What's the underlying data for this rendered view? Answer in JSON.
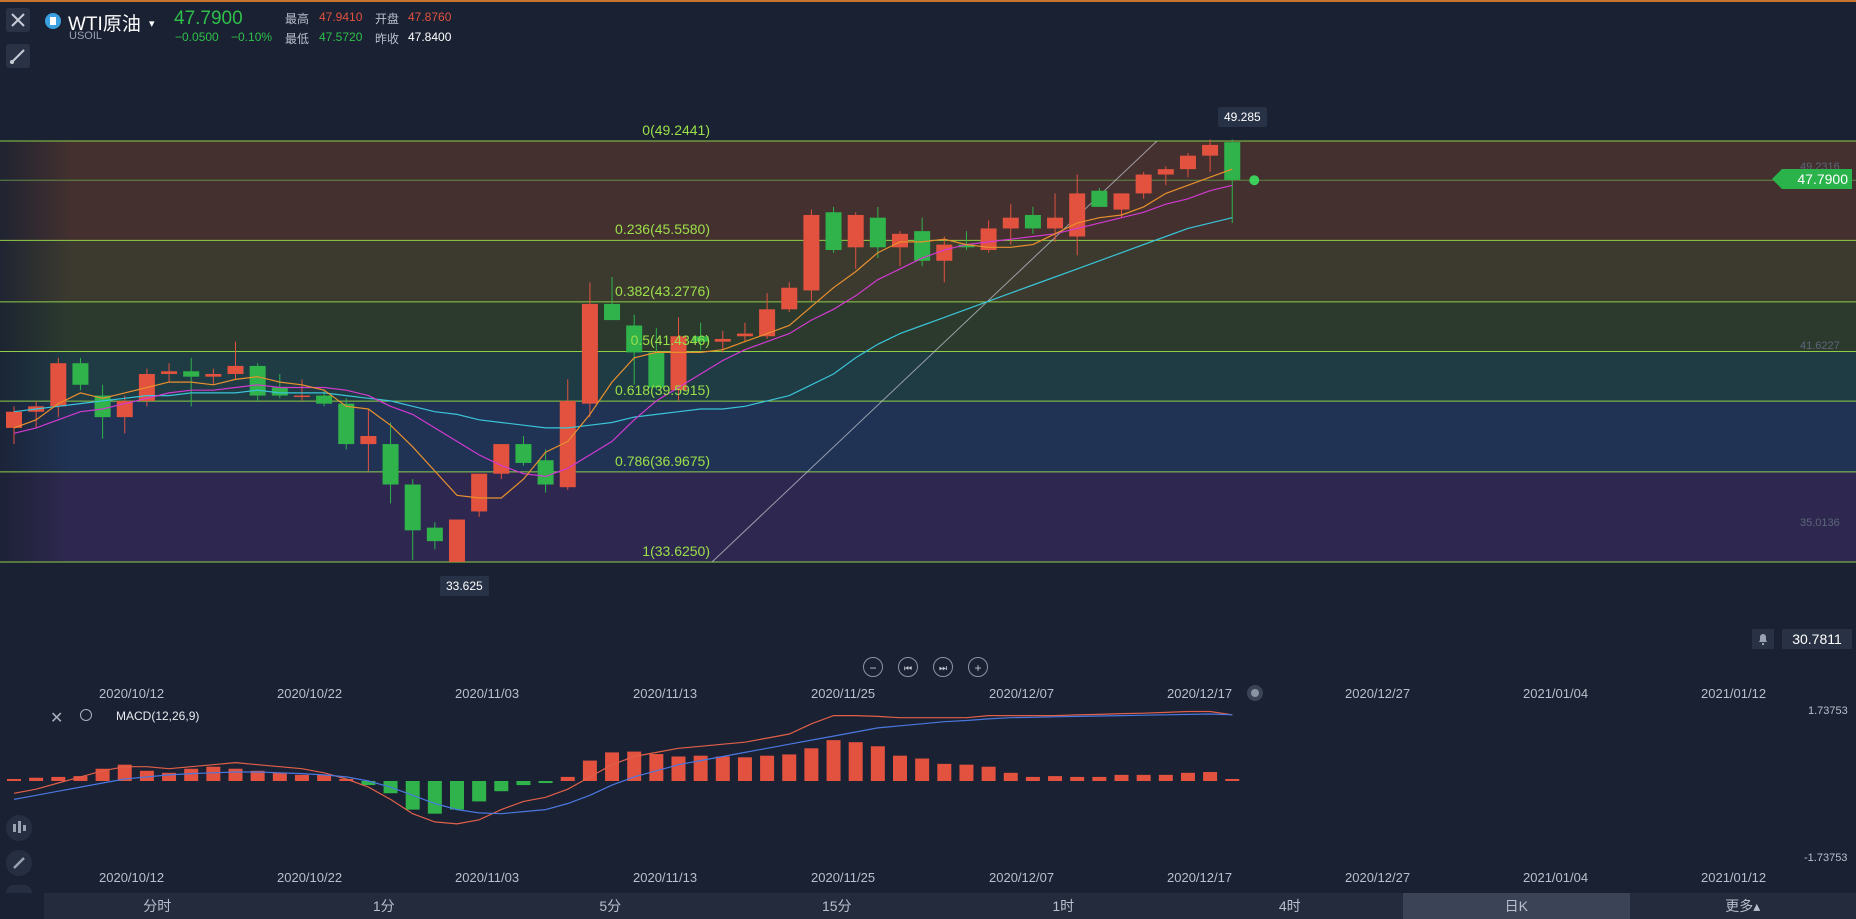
{
  "header": {
    "symbol_name": "WTI原油",
    "symbol_code": "USOIL",
    "caret": "▾",
    "last_price": "47.7900",
    "change": "−0.0500",
    "change_pct": "−0.10%",
    "stats": {
      "high_label": "最高",
      "high_value": "47.9410",
      "open_label": "开盘",
      "open_value": "47.8760",
      "low_label": "最低",
      "low_value": "47.5720",
      "prev_close_label": "昨收",
      "prev_close_value": "47.8400"
    },
    "close_icon": "close-icon",
    "draw_tool_icon": "pencil-line-icon"
  },
  "colors": {
    "up": "#e2523f",
    "down": "#2fb34a",
    "ma5": "#e8902e",
    "ma10": "#d23ad0",
    "ma20": "#3ac4d8",
    "fib_line": "#9be04a",
    "macd_dif": "#e0604a",
    "macd_dea": "#4a78e0"
  },
  "price_panel": {
    "current_price_tag": "47.7900",
    "high_callout": "49.285",
    "low_callout": "33.625",
    "right_axis_labels": [
      "49.2316",
      "41.6227",
      "35.0136"
    ],
    "indicator_value": "30.7811",
    "bell_icon": "bell-icon"
  },
  "fibonacci": {
    "levels": [
      {
        "label": "0(49.2441)",
        "price": 49.2441
      },
      {
        "label": "0.236(45.5580)",
        "price": 45.558
      },
      {
        "label": "0.382(43.2776)",
        "price": 43.2776
      },
      {
        "label": "0.5(41.4346)",
        "price": 41.4346
      },
      {
        "label": "0.618(39.5915)",
        "price": 39.5915
      },
      {
        "label": "0.786(36.9675)",
        "price": 36.9675
      },
      {
        "label": "1(33.6250)",
        "price": 33.625
      }
    ]
  },
  "navigation": {
    "zoom_out": "−",
    "prev": "⏮",
    "next": "⏭",
    "zoom_in": "+"
  },
  "date_axis": [
    "2020/10/12",
    "2020/10/22",
    "2020/11/03",
    "2020/11/13",
    "2020/11/25",
    "2020/12/07",
    "2020/12/17",
    "2020/12/27",
    "2021/01/04",
    "2021/01/12"
  ],
  "macd_panel": {
    "name": "MACD(12,26,9)",
    "top_label": "1.73753",
    "bottom_label": "-1.73753"
  },
  "timeframes": [
    "分时",
    "1分",
    "5分",
    "15分",
    "1时",
    "4时",
    "日K",
    "更多▴"
  ],
  "active_timeframe": "日K",
  "chart_data": {
    "type": "candlestick",
    "title": "WTI原油",
    "ylim": [
      30.78,
      51.4
    ],
    "candles": [
      [
        38.6,
        39.4,
        38.0,
        39.2
      ],
      [
        39.2,
        39.6,
        38.6,
        39.4
      ],
      [
        39.4,
        41.2,
        39.0,
        41.0
      ],
      [
        41.0,
        41.2,
        40.0,
        40.2
      ],
      [
        39.8,
        40.2,
        38.2,
        39.0
      ],
      [
        39.0,
        39.8,
        38.4,
        39.6
      ],
      [
        39.6,
        40.8,
        39.4,
        40.6
      ],
      [
        40.6,
        41.0,
        40.3,
        40.7
      ],
      [
        40.7,
        41.2,
        39.4,
        40.5
      ],
      [
        40.5,
        40.8,
        40.2,
        40.6
      ],
      [
        40.6,
        41.8,
        40.4,
        40.9
      ],
      [
        40.9,
        41.0,
        39.6,
        39.8
      ],
      [
        40.1,
        40.6,
        39.7,
        39.8
      ],
      [
        39.8,
        40.4,
        39.6,
        39.8
      ],
      [
        39.8,
        40.0,
        39.4,
        39.5
      ],
      [
        39.5,
        39.7,
        37.8,
        38.0
      ],
      [
        38.0,
        39.3,
        37.0,
        38.3
      ],
      [
        38.0,
        38.8,
        35.8,
        36.5
      ],
      [
        36.5,
        36.7,
        33.7,
        34.8
      ],
      [
        34.9,
        35.1,
        34.1,
        34.4
      ],
      [
        33.63,
        35.2,
        33.63,
        35.2
      ],
      [
        35.5,
        36.9,
        35.3,
        36.9
      ],
      [
        36.9,
        38.0,
        36.7,
        38.0
      ],
      [
        38.0,
        38.3,
        37.2,
        37.3
      ],
      [
        37.4,
        37.8,
        36.2,
        36.5
      ],
      [
        36.4,
        40.4,
        36.3,
        39.6
      ],
      [
        39.5,
        44.0,
        39.0,
        43.2
      ],
      [
        43.2,
        44.2,
        42.6,
        42.6
      ],
      [
        42.4,
        42.8,
        40.2,
        41.4
      ],
      [
        41.4,
        42.3,
        40.0,
        40.1
      ],
      [
        40.0,
        42.7,
        39.6,
        42.0
      ],
      [
        42.0,
        42.5,
        41.5,
        41.8
      ],
      [
        41.8,
        42.2,
        41.4,
        41.9
      ],
      [
        42.0,
        42.5,
        41.8,
        42.1
      ],
      [
        42.0,
        43.6,
        41.9,
        43.0
      ],
      [
        43.0,
        44.0,
        42.9,
        43.8
      ],
      [
        43.7,
        46.7,
        43.3,
        46.5
      ],
      [
        46.6,
        46.8,
        45.1,
        45.2
      ],
      [
        45.3,
        46.6,
        44.5,
        46.5
      ],
      [
        46.4,
        46.8,
        44.9,
        45.3
      ],
      [
        45.3,
        45.9,
        44.6,
        45.8
      ],
      [
        45.9,
        46.4,
        44.6,
        44.8
      ],
      [
        44.8,
        45.7,
        44.0,
        45.4
      ],
      [
        45.4,
        45.9,
        45.2,
        45.3
      ],
      [
        45.2,
        46.3,
        45.1,
        46.0
      ],
      [
        46.0,
        46.9,
        45.4,
        46.4
      ],
      [
        46.5,
        46.8,
        45.8,
        46.0
      ],
      [
        46.0,
        47.3,
        45.5,
        46.4
      ],
      [
        45.7,
        48.0,
        45.0,
        47.3
      ],
      [
        47.4,
        47.5,
        46.8,
        46.8
      ],
      [
        46.7,
        47.3,
        46.4,
        47.3
      ],
      [
        47.3,
        48.1,
        47.1,
        48.0
      ],
      [
        48.0,
        48.3,
        47.6,
        48.2
      ],
      [
        48.2,
        48.8,
        47.9,
        48.7
      ],
      [
        48.7,
        49.3,
        48.1,
        49.1
      ],
      [
        49.2,
        49.3,
        46.2,
        47.8
      ]
    ],
    "ma5": [
      38.6,
      38.9,
      39.5,
      39.9,
      39.7,
      39.9,
      40.1,
      40.3,
      40.3,
      40.2,
      40.4,
      40.5,
      40.3,
      40.2,
      40.0,
      39.4,
      39.3,
      38.7,
      37.9,
      37.0,
      36.1,
      36.0,
      36.0,
      36.7,
      37.7,
      38.1,
      39.1,
      40.3,
      41.2,
      41.4,
      41.4,
      41.4,
      41.5,
      41.8,
      42.1,
      42.4,
      43.1,
      43.8,
      44.4,
      45.1,
      45.5,
      45.5,
      45.6,
      45.4,
      45.3,
      45.3,
      45.4,
      45.8,
      46.2,
      46.4,
      46.5,
      46.8,
      47.3,
      47.6,
      47.9,
      48.2
    ],
    "ma10": [
      38.4,
      38.6,
      38.9,
      39.2,
      39.3,
      39.5,
      39.7,
      39.9,
      40.0,
      40.0,
      40.1,
      40.2,
      40.1,
      40.1,
      40.1,
      40.0,
      39.8,
      39.4,
      39.1,
      38.6,
      38.1,
      37.6,
      37.2,
      36.9,
      36.8,
      37.1,
      37.6,
      38.1,
      38.9,
      39.6,
      40.1,
      40.6,
      41.1,
      41.5,
      41.8,
      42.1,
      42.6,
      43.0,
      43.5,
      44.1,
      44.5,
      44.9,
      45.2,
      45.4,
      45.5,
      45.6,
      45.7,
      45.8,
      46.0,
      46.2,
      46.4,
      46.6,
      46.9,
      47.1,
      47.4,
      47.6
    ],
    "ma20": [
      39.2,
      39.3,
      39.4,
      39.5,
      39.6,
      39.7,
      39.8,
      39.8,
      39.9,
      39.9,
      39.9,
      40.0,
      39.9,
      39.9,
      39.9,
      39.8,
      39.7,
      39.6,
      39.4,
      39.2,
      39.1,
      38.9,
      38.8,
      38.7,
      38.6,
      38.6,
      38.7,
      38.8,
      39.0,
      39.1,
      39.2,
      39.3,
      39.3,
      39.4,
      39.6,
      39.8,
      40.2,
      40.6,
      41.2,
      41.7,
      42.1,
      42.4,
      42.7,
      43.0,
      43.3,
      43.6,
      43.9,
      44.2,
      44.5,
      44.8,
      45.1,
      45.4,
      45.7,
      46.0,
      46.2,
      46.4
    ],
    "macd": {
      "ylim": [
        -1.73753,
        1.73753
      ],
      "hist": [
        0.05,
        0.08,
        0.1,
        0.12,
        0.3,
        0.4,
        0.25,
        0.2,
        0.3,
        0.35,
        0.3,
        0.25,
        0.2,
        0.15,
        0.15,
        0.05,
        -0.1,
        -0.3,
        -0.7,
        -0.8,
        -0.7,
        -0.5,
        -0.25,
        -0.1,
        -0.05,
        0.1,
        0.5,
        0.7,
        0.72,
        0.66,
        0.6,
        0.62,
        0.6,
        0.58,
        0.62,
        0.65,
        0.8,
        1.0,
        0.95,
        0.85,
        0.62,
        0.55,
        0.42,
        0.4,
        0.35,
        0.2,
        0.1,
        0.12,
        0.1,
        0.1,
        0.15,
        0.15,
        0.15,
        0.2,
        0.22,
        0.05
      ],
      "dif": [
        -0.3,
        -0.2,
        -0.05,
        0.1,
        0.25,
        0.35,
        0.35,
        0.3,
        0.35,
        0.4,
        0.45,
        0.4,
        0.35,
        0.3,
        0.2,
        0.05,
        -0.15,
        -0.45,
        -0.8,
        -1.0,
        -1.05,
        -0.95,
        -0.7,
        -0.5,
        -0.4,
        -0.2,
        0.1,
        0.4,
        0.6,
        0.7,
        0.8,
        0.85,
        0.9,
        0.95,
        1.05,
        1.15,
        1.4,
        1.6,
        1.6,
        1.58,
        1.55,
        1.55,
        1.55,
        1.55,
        1.6,
        1.6,
        1.6,
        1.6,
        1.62,
        1.63,
        1.65,
        1.66,
        1.68,
        1.7,
        1.7,
        1.62
      ],
      "dea": [
        -0.45,
        -0.35,
        -0.25,
        -0.15,
        -0.05,
        0.05,
        0.1,
        0.15,
        0.18,
        0.2,
        0.22,
        0.22,
        0.2,
        0.18,
        0.15,
        0.1,
        0.0,
        -0.15,
        -0.35,
        -0.55,
        -0.7,
        -0.78,
        -0.8,
        -0.75,
        -0.7,
        -0.55,
        -0.35,
        -0.1,
        0.1,
        0.25,
        0.4,
        0.5,
        0.6,
        0.7,
        0.8,
        0.9,
        1.0,
        1.1,
        1.2,
        1.3,
        1.35,
        1.4,
        1.45,
        1.48,
        1.52,
        1.55,
        1.56,
        1.57,
        1.58,
        1.59,
        1.6,
        1.61,
        1.62,
        1.63,
        1.64,
        1.62
      ]
    }
  }
}
